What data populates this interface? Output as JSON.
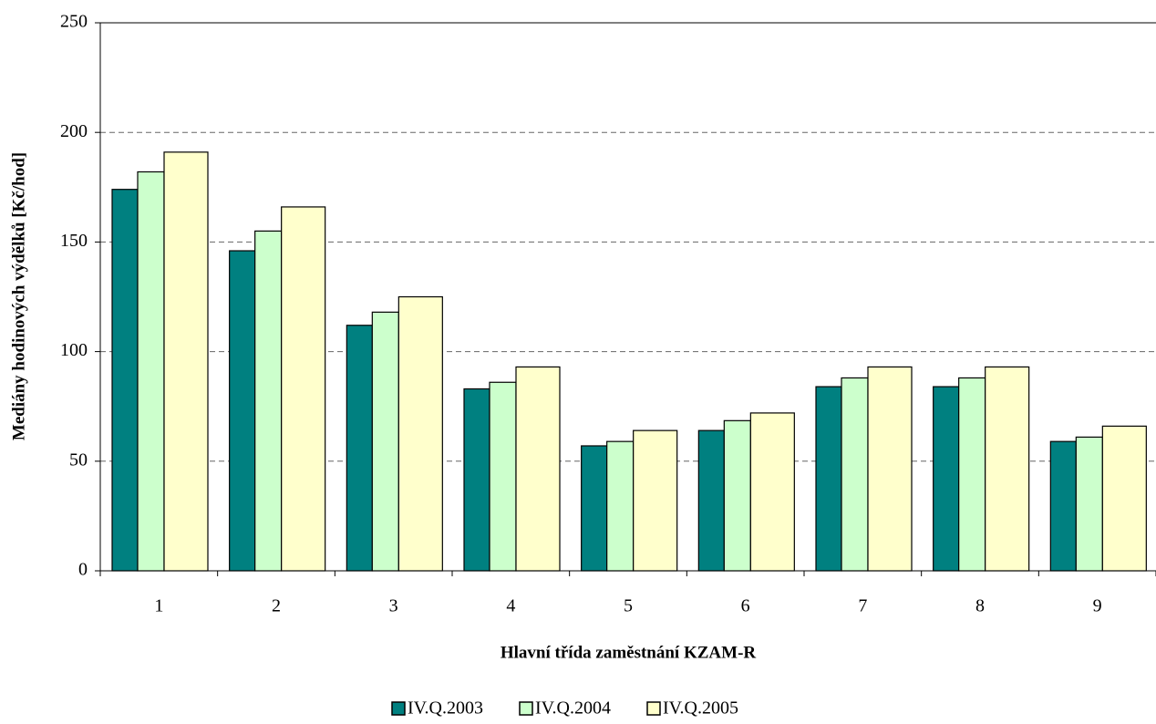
{
  "chart_data": {
    "type": "bar",
    "x_label": "Hlavní třída zaměstnání KZAM-R",
    "y_label": "Mediány hodinových výdělků [Kč/hod]",
    "categories": [
      "1",
      "2",
      "3",
      "4",
      "5",
      "6",
      "7",
      "8",
      "9"
    ],
    "series": [
      {
        "name": "IV.Q.2003",
        "color": "#008080",
        "values": [
          174,
          146,
          112,
          83,
          57,
          64,
          84,
          84,
          59
        ]
      },
      {
        "name": "IV.Q.2004",
        "color": "#ccffcc",
        "values": [
          182,
          155,
          118,
          86,
          59,
          68.5,
          88,
          88,
          61
        ]
      },
      {
        "name": "IV.Q.2005",
        "color": "#ffffcc",
        "values": [
          191,
          166,
          125,
          93,
          64,
          72,
          93,
          93,
          66
        ]
      }
    ],
    "ylim": [
      0,
      250
    ],
    "yticks": [
      0,
      50,
      100,
      150,
      200,
      250
    ],
    "grid": true,
    "legend": "bottom"
  }
}
